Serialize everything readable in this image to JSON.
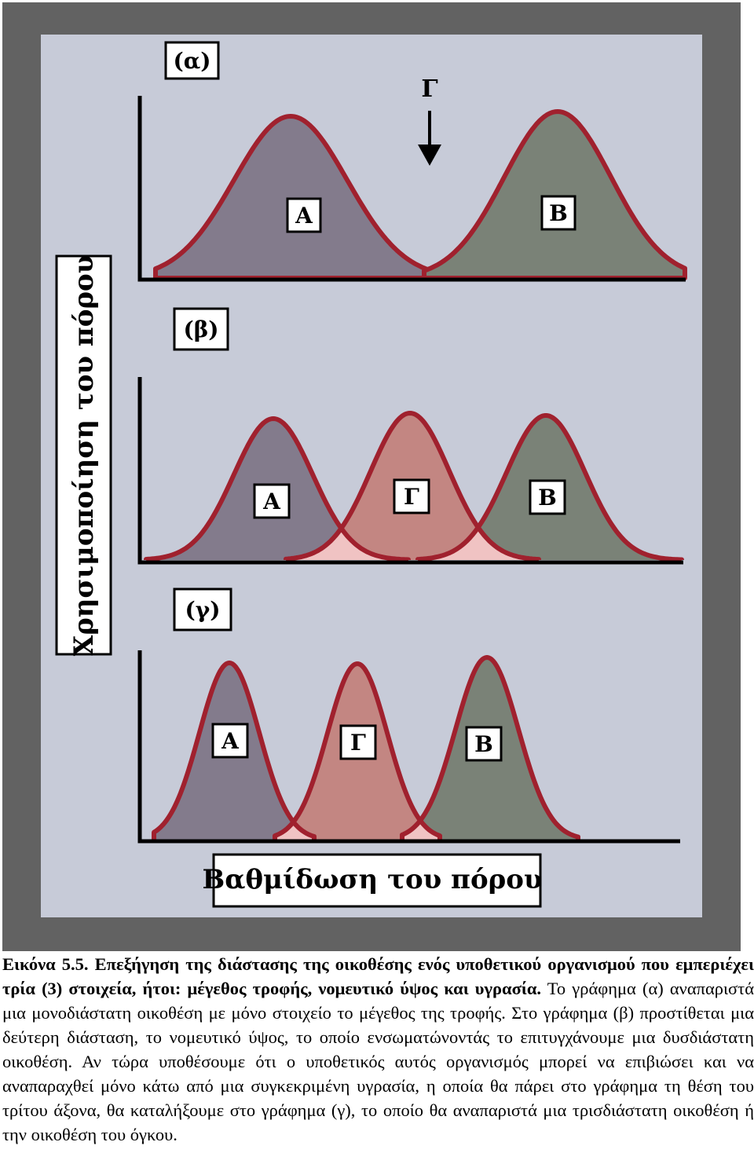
{
  "colors": {
    "outer_frame": "#626262",
    "panel_background": "#c7cbd8",
    "curve_outline": "#a0212e",
    "fill_A": "#837b8c",
    "fill_B": "#7a8277",
    "fill_G": "#c38682",
    "fill_overlap": "#f0c3c3",
    "axis": "#000000"
  },
  "diagram": {
    "y_axis_label": "Χρησιμοποίηση του πόρου",
    "x_axis_label": "Βαθμίδωση του πόρου",
    "arrow_label": "Γ",
    "panels": [
      {
        "tag": "(α)",
        "curves": [
          "Α",
          "Β"
        ]
      },
      {
        "tag": "(β)",
        "curves": [
          "Α",
          "Γ",
          "Β"
        ]
      },
      {
        "tag": "(γ)",
        "curves": [
          "Α",
          "Γ",
          "Β"
        ]
      }
    ]
  },
  "caption": {
    "bold_part": "Εικόνα 5.5. Επεξήγηση της διάστασης της οικοθέσης ενός υποθετικού οργανισμού που εμπεριέχει τρία (3) στοιχεία, ήτοι: μέγεθος τροφής, νομευτικό ύψος και υγρασία.",
    "normal_part": " Το γράφημα (α) αναπαριστά μια μονοδιάστατη οικοθέση με μόνο στοιχείο το μέγεθος της τροφής. Στο γράφημα (β) προστίθεται μια δεύτερη διάσταση, το νομευτικό ύψος, το οποίο ενσωματώνοντάς το επιτυγχάνουμε μια δυσδιάστατη οικοθέση. Αν τώρα υποθέσουμε ότι ο υποθετικός αυτός οργανισμός μπορεί να επιβιώσει και να αναπαραχθεί μόνο κάτω από μια συγκεκριμένη υγρασία, η οποία θα πάρει στο γράφημα τη θέση του τρίτου άξονα, θα καταλήξουμε στο γράφημα (γ), το οποίο θα αναπαριστά μια τρισδιάστατη οικοθέση ή την οικοθέση του όγκου."
  }
}
